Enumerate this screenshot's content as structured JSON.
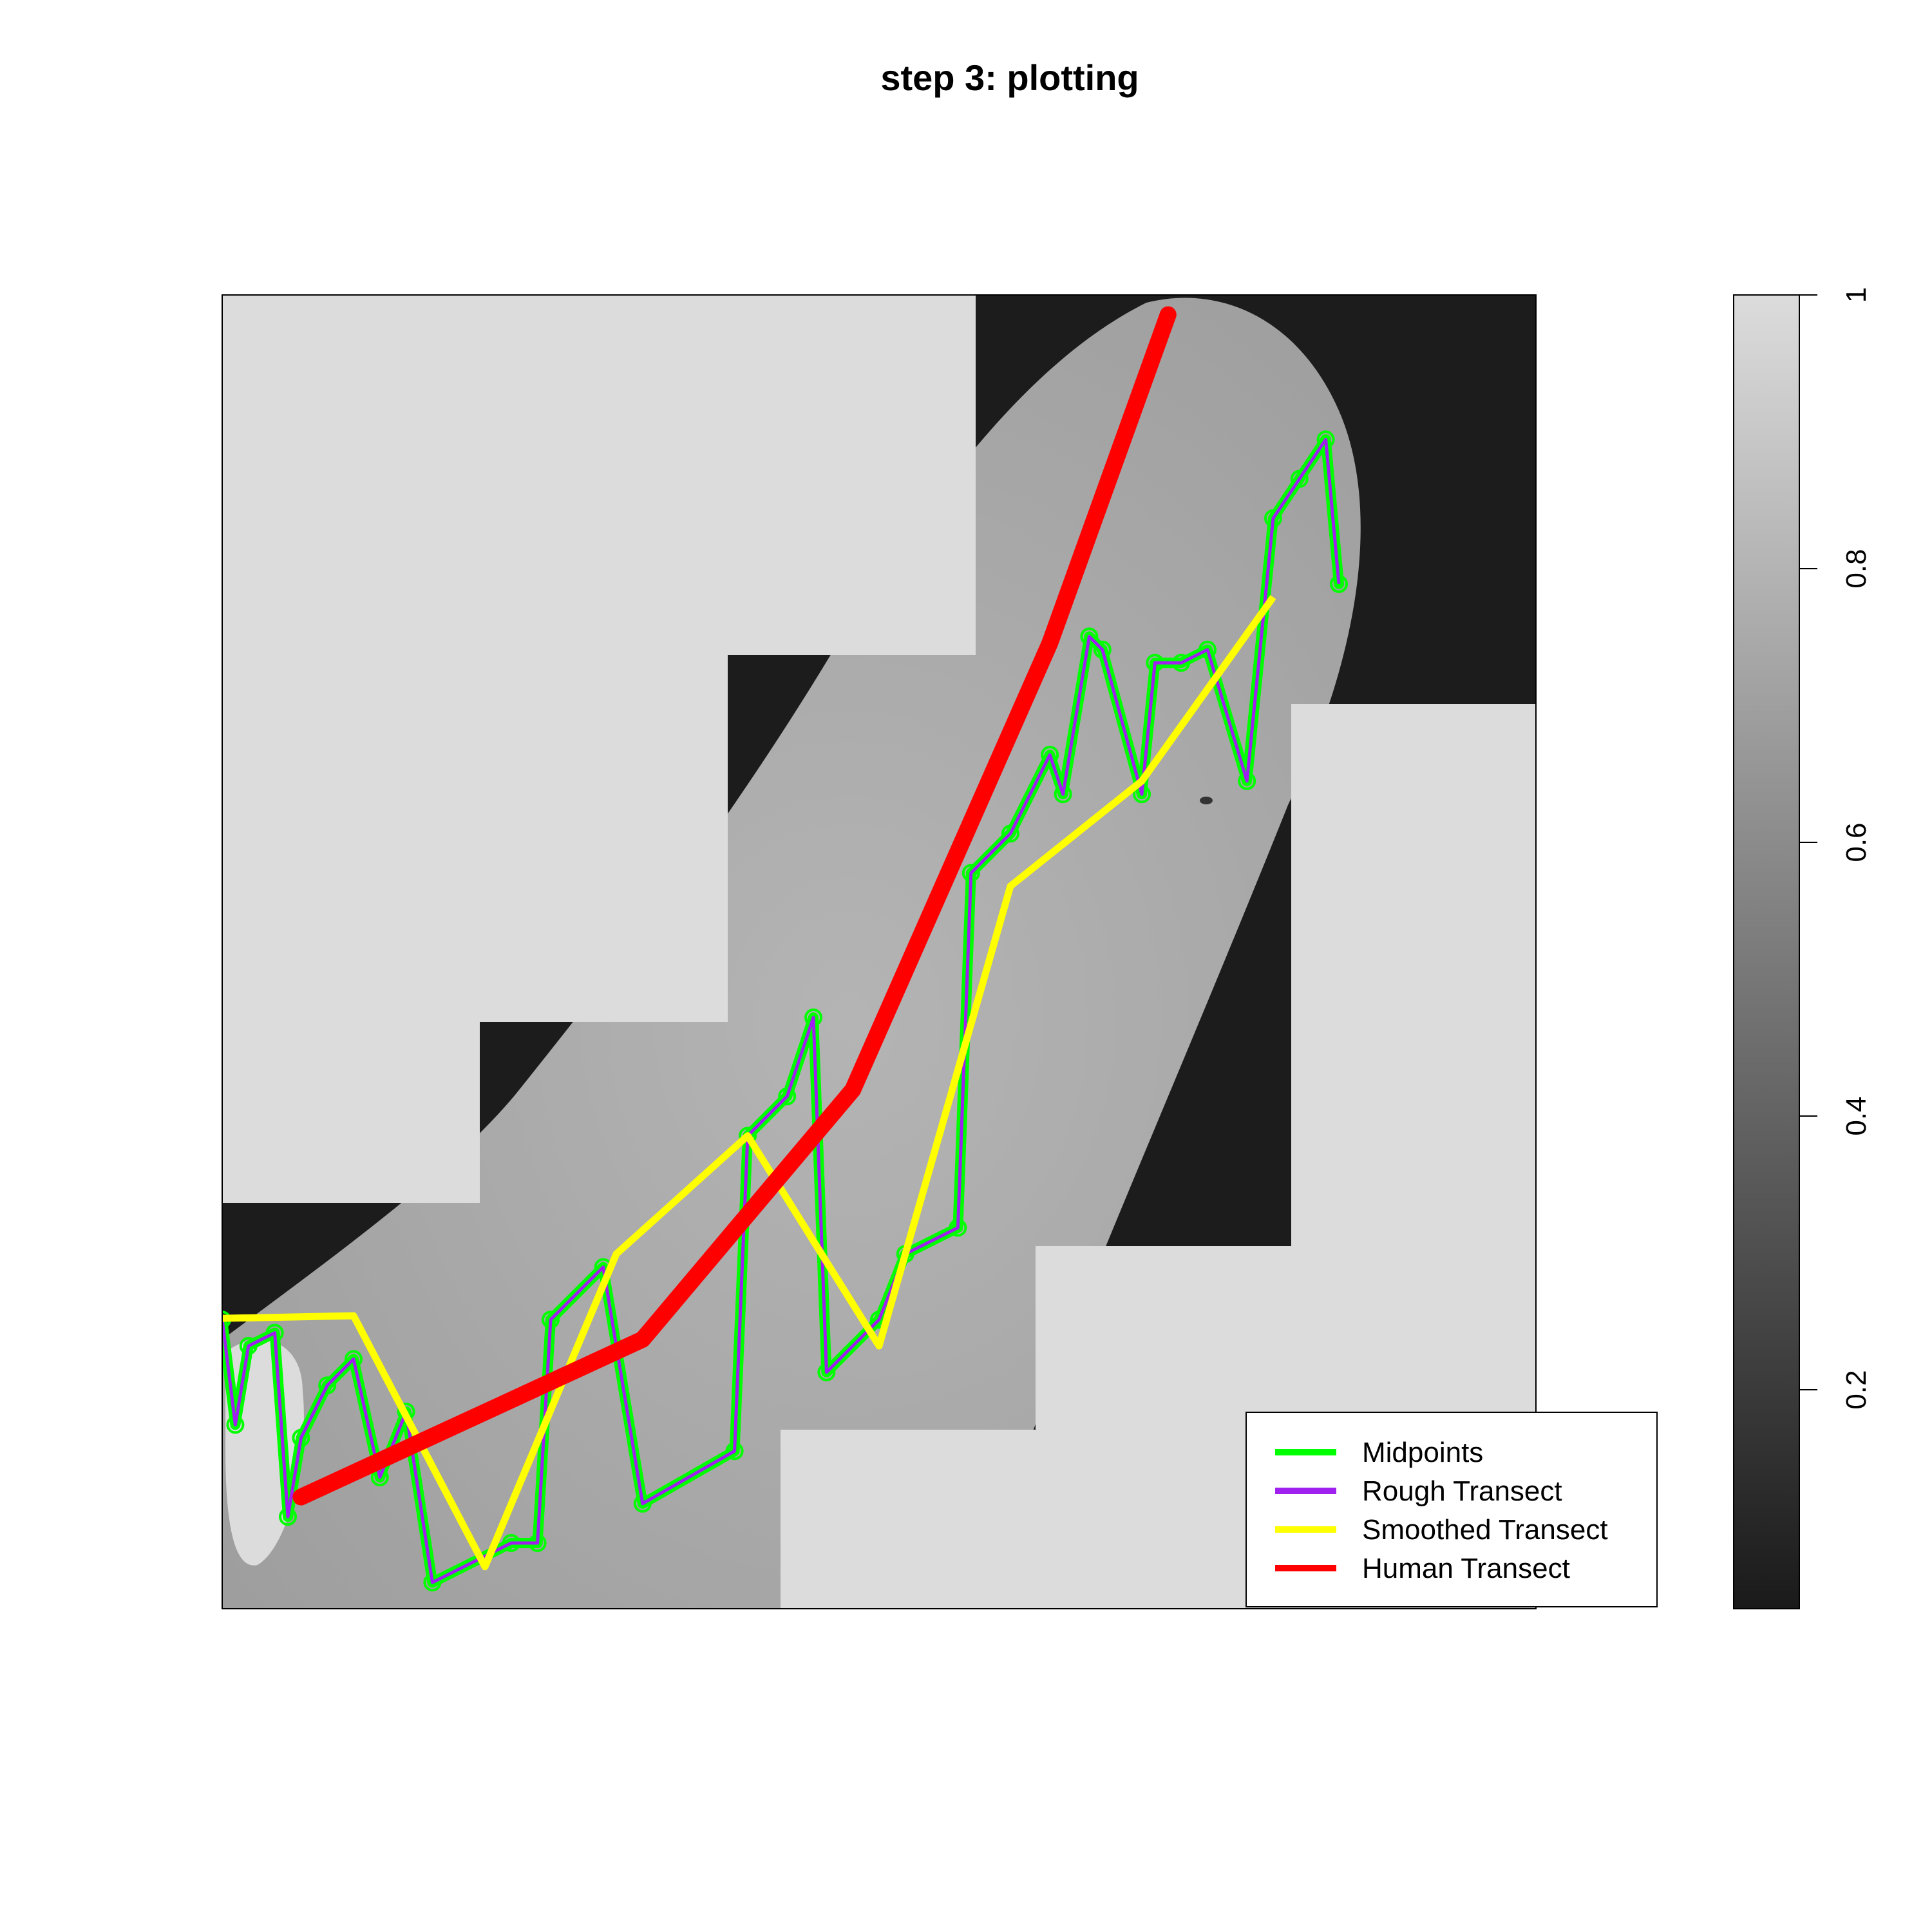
{
  "chart_data": {
    "type": "line",
    "title": "step 3: plotting",
    "xlabel": "",
    "ylabel": "",
    "background": "grayscale raster image with light-gray padded regions",
    "series": [
      {
        "name": "Midpoints",
        "color": "#00ff00",
        "marker": "circle",
        "points": [
          [
            0.0,
            0.22
          ],
          [
            0.01,
            0.14
          ],
          [
            0.02,
            0.2
          ],
          [
            0.04,
            0.21
          ],
          [
            0.05,
            0.07
          ],
          [
            0.06,
            0.13
          ],
          [
            0.08,
            0.17
          ],
          [
            0.1,
            0.19
          ],
          [
            0.12,
            0.1
          ],
          [
            0.14,
            0.15
          ],
          [
            0.16,
            0.02
          ],
          [
            0.22,
            0.05
          ],
          [
            0.24,
            0.05
          ],
          [
            0.25,
            0.22
          ],
          [
            0.29,
            0.26
          ],
          [
            0.32,
            0.08
          ],
          [
            0.39,
            0.12
          ],
          [
            0.4,
            0.36
          ],
          [
            0.43,
            0.39
          ],
          [
            0.45,
            0.45
          ],
          [
            0.46,
            0.18
          ],
          [
            0.5,
            0.22
          ],
          [
            0.52,
            0.27
          ],
          [
            0.56,
            0.29
          ],
          [
            0.57,
            0.56
          ],
          [
            0.6,
            0.59
          ],
          [
            0.63,
            0.65
          ],
          [
            0.64,
            0.62
          ],
          [
            0.66,
            0.74
          ],
          [
            0.67,
            0.73
          ],
          [
            0.7,
            0.62
          ],
          [
            0.71,
            0.72
          ],
          [
            0.73,
            0.72
          ],
          [
            0.75,
            0.73
          ],
          [
            0.78,
            0.63
          ],
          [
            0.8,
            0.83
          ],
          [
            0.82,
            0.86
          ],
          [
            0.84,
            0.89
          ],
          [
            0.85,
            0.78
          ]
        ]
      },
      {
        "name": "Rough Transect",
        "color": "#a020f0",
        "marker": "line",
        "points": [
          [
            0.0,
            0.22
          ],
          [
            0.01,
            0.14
          ],
          [
            0.02,
            0.2
          ],
          [
            0.04,
            0.21
          ],
          [
            0.05,
            0.07
          ],
          [
            0.06,
            0.13
          ],
          [
            0.08,
            0.17
          ],
          [
            0.1,
            0.19
          ],
          [
            0.12,
            0.1
          ],
          [
            0.14,
            0.15
          ],
          [
            0.16,
            0.02
          ],
          [
            0.22,
            0.05
          ],
          [
            0.24,
            0.05
          ],
          [
            0.25,
            0.22
          ],
          [
            0.29,
            0.26
          ],
          [
            0.32,
            0.08
          ],
          [
            0.39,
            0.12
          ],
          [
            0.4,
            0.36
          ],
          [
            0.43,
            0.39
          ],
          [
            0.45,
            0.45
          ],
          [
            0.46,
            0.18
          ],
          [
            0.5,
            0.22
          ],
          [
            0.52,
            0.27
          ],
          [
            0.56,
            0.29
          ],
          [
            0.57,
            0.56
          ],
          [
            0.6,
            0.59
          ],
          [
            0.63,
            0.65
          ],
          [
            0.64,
            0.62
          ],
          [
            0.66,
            0.74
          ],
          [
            0.67,
            0.73
          ],
          [
            0.7,
            0.62
          ],
          [
            0.71,
            0.72
          ],
          [
            0.73,
            0.72
          ],
          [
            0.75,
            0.73
          ],
          [
            0.78,
            0.63
          ],
          [
            0.8,
            0.83
          ],
          [
            0.82,
            0.86
          ],
          [
            0.84,
            0.89
          ],
          [
            0.85,
            0.78
          ]
        ]
      },
      {
        "name": "Smoothed Transect",
        "color": "#ffff00",
        "marker": "line",
        "points": [
          [
            0.0,
            0.221
          ],
          [
            0.1,
            0.223
          ],
          [
            0.2,
            0.032
          ],
          [
            0.3,
            0.27
          ],
          [
            0.4,
            0.36
          ],
          [
            0.5,
            0.2
          ],
          [
            0.6,
            0.55
          ],
          [
            0.7,
            0.63
          ],
          [
            0.8,
            0.77
          ]
        ]
      },
      {
        "name": "Human Transect",
        "color": "#ff0000",
        "marker": "line",
        "points": [
          [
            0.06,
            0.085
          ],
          [
            0.32,
            0.205
          ],
          [
            0.48,
            0.395
          ],
          [
            0.63,
            0.735
          ],
          [
            0.72,
            0.985
          ]
        ]
      }
    ],
    "colorbar": {
      "ticks": [
        "0.2",
        "0.4",
        "0.6",
        "0.8",
        "1"
      ],
      "values": [
        0.2,
        0.4,
        0.6,
        0.8,
        1.0
      ],
      "range": [
        0.04,
        1.0
      ],
      "gradient": [
        "#1a1a1a",
        "#dcdcdc"
      ]
    },
    "legend": {
      "placement": "bottom-right",
      "entries": [
        "Midpoints",
        "Rough Transect",
        "Smoothed Transect",
        "Human Transect"
      ]
    },
    "grid": false
  }
}
